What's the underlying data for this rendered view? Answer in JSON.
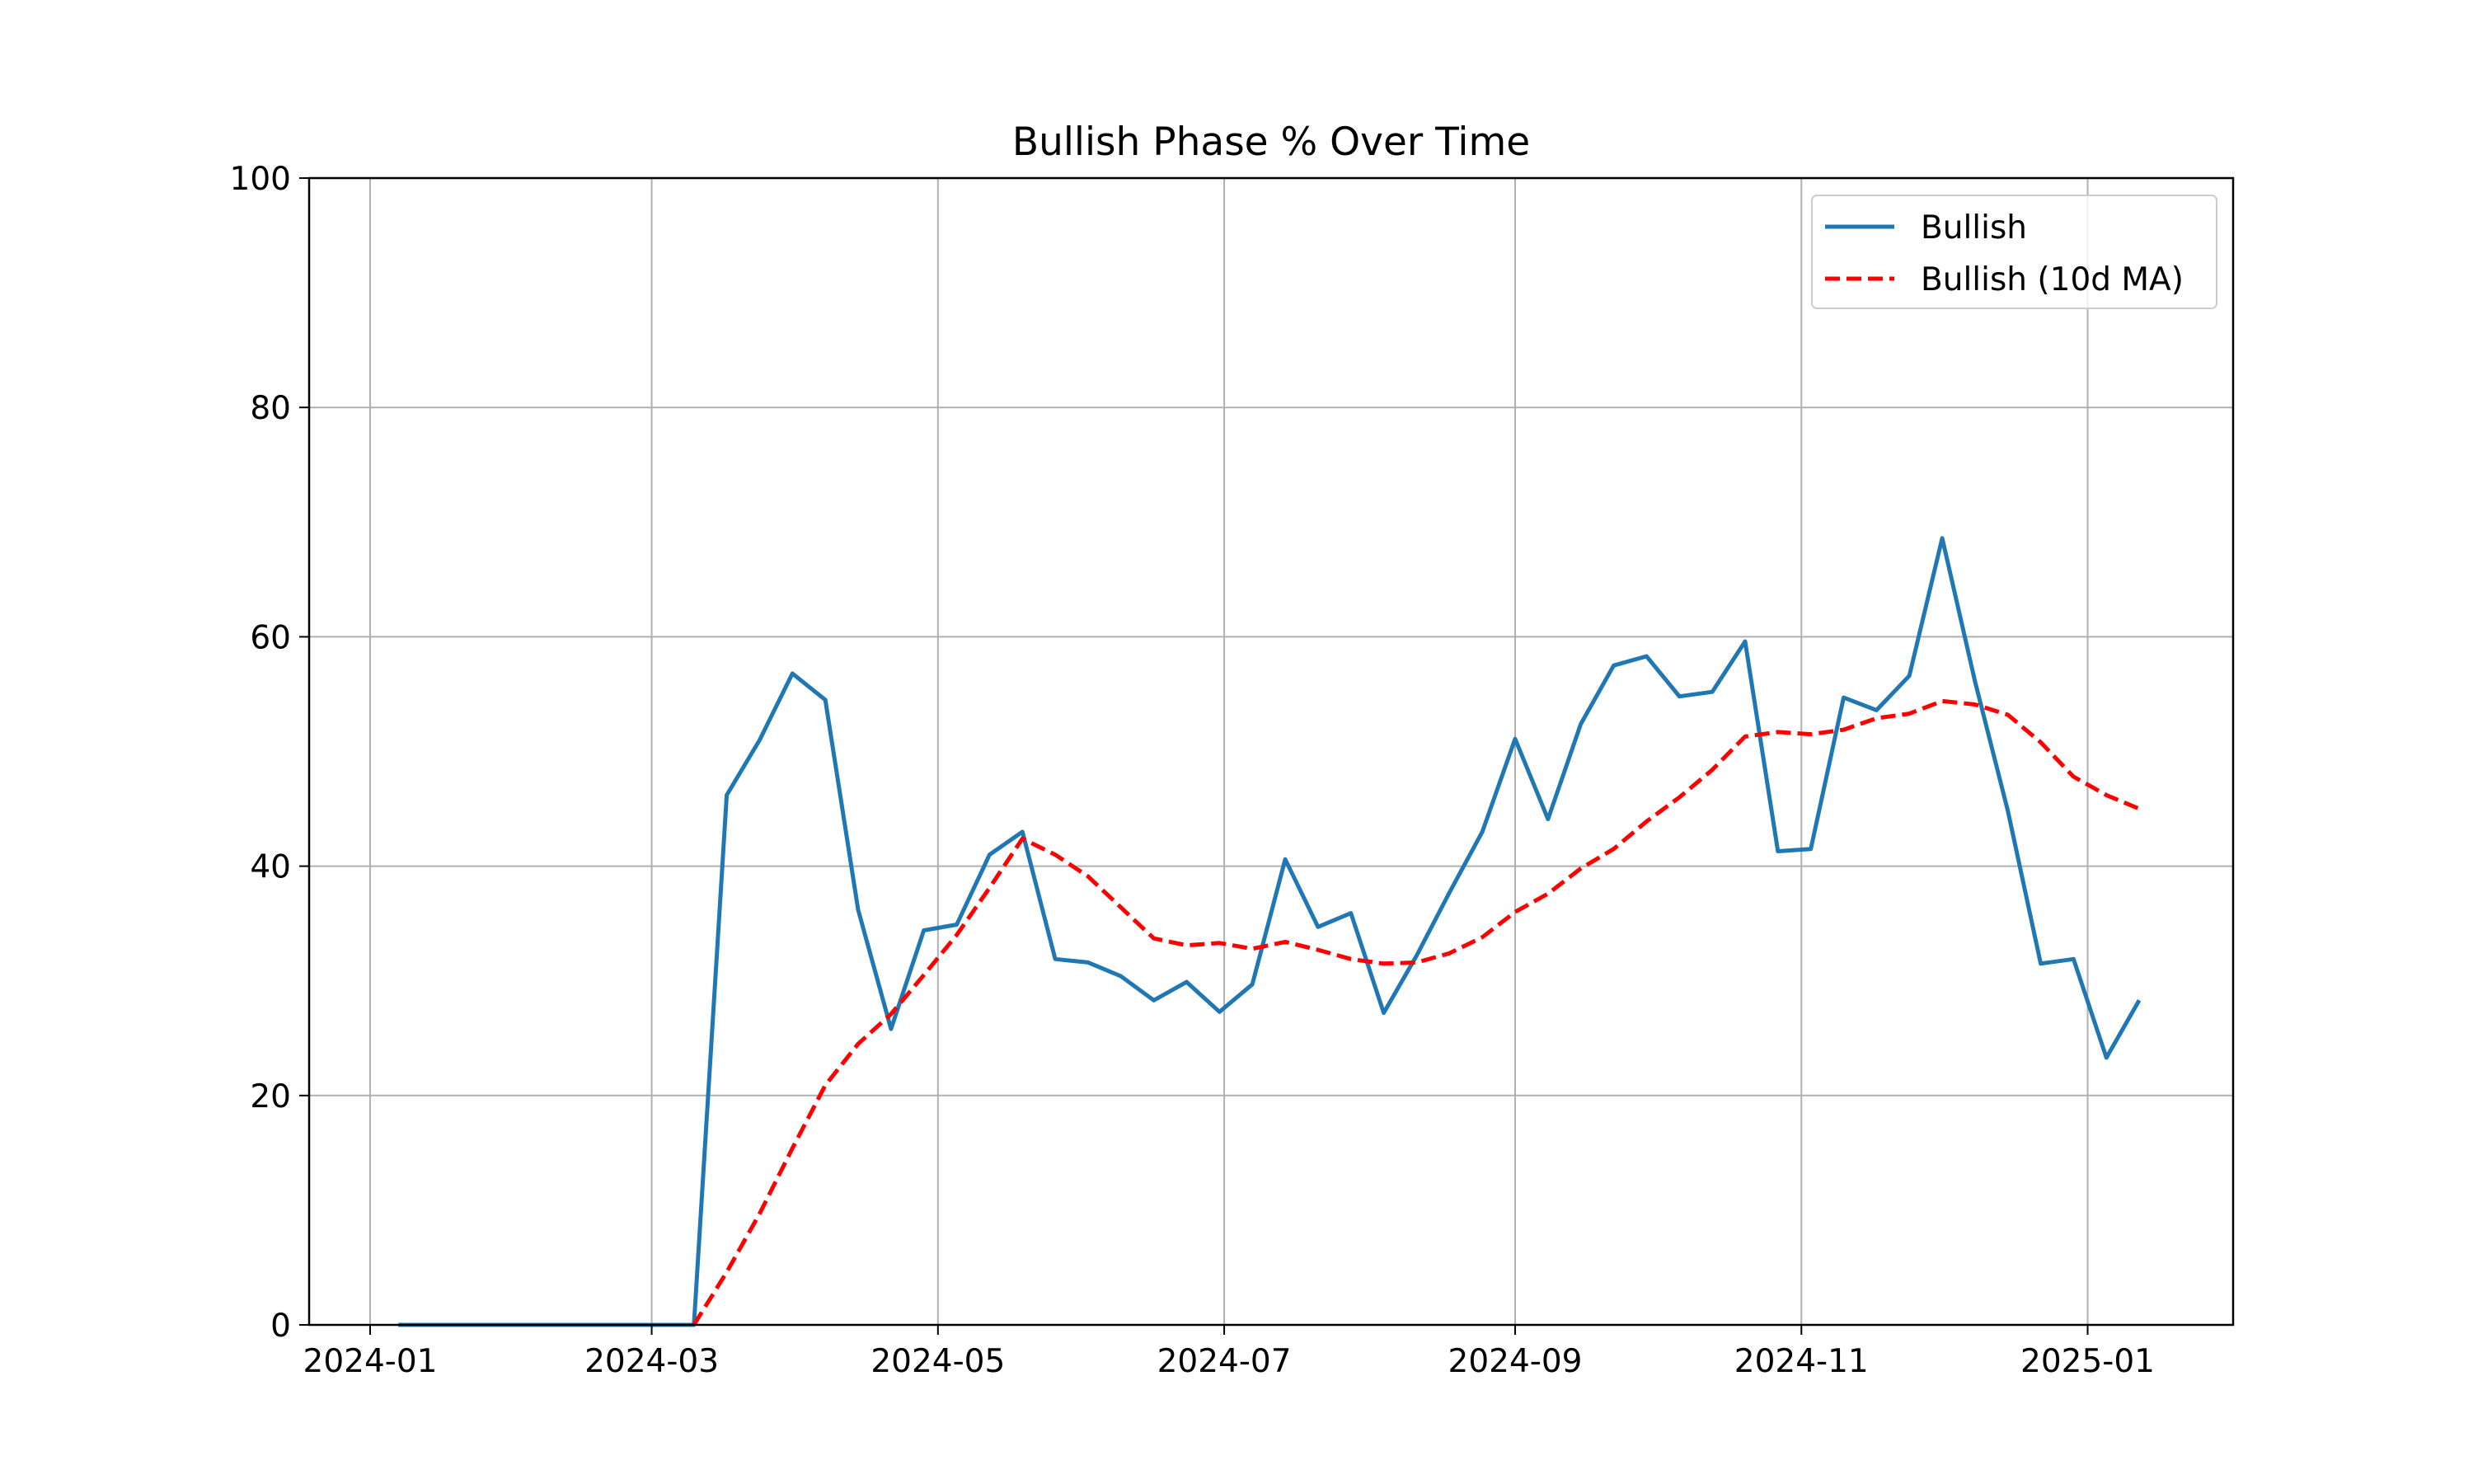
{
  "chart_data": {
    "type": "line",
    "title": "Bullish Phase % Over Time",
    "xlabel": "",
    "ylabel": "",
    "ylim": [
      0,
      100
    ],
    "xlim": [
      "2023-12-19",
      "2025-02-01"
    ],
    "x_ticks": [
      {
        "date": "2024-01-01",
        "label": "2024-01"
      },
      {
        "date": "2024-03-01",
        "label": "2024-03"
      },
      {
        "date": "2024-05-01",
        "label": "2024-05"
      },
      {
        "date": "2024-07-01",
        "label": "2024-07"
      },
      {
        "date": "2024-09-01",
        "label": "2024-09"
      },
      {
        "date": "2024-11-01",
        "label": "2024-11"
      },
      {
        "date": "2025-01-01",
        "label": "2025-01"
      }
    ],
    "y_ticks": [
      0,
      20,
      40,
      60,
      80,
      100
    ],
    "grid": true,
    "legend_position": "top-right",
    "series": [
      {
        "name": "Bullish",
        "color": "#1f77b4",
        "style": "solid",
        "points": [
          [
            "2024-01-07",
            0
          ],
          [
            "2024-01-14",
            0
          ],
          [
            "2024-01-21",
            0
          ],
          [
            "2024-01-28",
            0
          ],
          [
            "2024-02-04",
            0
          ],
          [
            "2024-02-11",
            0
          ],
          [
            "2024-02-18",
            0
          ],
          [
            "2024-02-25",
            0
          ],
          [
            "2024-03-03",
            0
          ],
          [
            "2024-03-10",
            0
          ],
          [
            "2024-03-17",
            46.2
          ],
          [
            "2024-03-24",
            51.0
          ],
          [
            "2024-03-31",
            56.8
          ],
          [
            "2024-04-07",
            54.5
          ],
          [
            "2024-04-14",
            36.2
          ],
          [
            "2024-04-21",
            25.8
          ],
          [
            "2024-04-28",
            34.4
          ],
          [
            "2024-05-05",
            34.9
          ],
          [
            "2024-05-12",
            41.0
          ],
          [
            "2024-05-19",
            43.0
          ],
          [
            "2024-05-26",
            31.9
          ],
          [
            "2024-06-02",
            31.6
          ],
          [
            "2024-06-09",
            30.4
          ],
          [
            "2024-06-16",
            28.3
          ],
          [
            "2024-06-23",
            29.9
          ],
          [
            "2024-06-30",
            27.3
          ],
          [
            "2024-07-07",
            29.7
          ],
          [
            "2024-07-14",
            40.6
          ],
          [
            "2024-07-21",
            34.7
          ],
          [
            "2024-07-28",
            35.9
          ],
          [
            "2024-08-04",
            27.2
          ],
          [
            "2024-08-11",
            32.2
          ],
          [
            "2024-08-18",
            37.7
          ],
          [
            "2024-08-25",
            43.0
          ],
          [
            "2024-09-01",
            51.1
          ],
          [
            "2024-09-08",
            44.1
          ],
          [
            "2024-09-15",
            52.4
          ],
          [
            "2024-09-22",
            57.5
          ],
          [
            "2024-09-29",
            58.3
          ],
          [
            "2024-10-06",
            54.8
          ],
          [
            "2024-10-13",
            55.2
          ],
          [
            "2024-10-20",
            59.6
          ],
          [
            "2024-10-27",
            41.3
          ],
          [
            "2024-11-03",
            41.5
          ],
          [
            "2024-11-10",
            54.7
          ],
          [
            "2024-11-17",
            53.6
          ],
          [
            "2024-11-24",
            56.6
          ],
          [
            "2024-12-01",
            68.6
          ],
          [
            "2024-12-08",
            56.1
          ],
          [
            "2024-12-15",
            44.8
          ],
          [
            "2024-12-22",
            31.5
          ],
          [
            "2024-12-29",
            31.9
          ],
          [
            "2025-01-05",
            23.3
          ],
          [
            "2025-01-12",
            28.3
          ]
        ]
      },
      {
        "name": "Bullish (10d MA)",
        "color": "#ff0000",
        "style": "dashed",
        "points": [
          [
            "2024-03-10",
            0
          ],
          [
            "2024-03-17",
            4.6
          ],
          [
            "2024-03-24",
            9.7
          ],
          [
            "2024-03-31",
            15.4
          ],
          [
            "2024-04-07",
            20.9
          ],
          [
            "2024-04-14",
            24.5
          ],
          [
            "2024-04-21",
            27.1
          ],
          [
            "2024-04-28",
            30.5
          ],
          [
            "2024-05-05",
            34.0
          ],
          [
            "2024-05-12",
            38.1
          ],
          [
            "2024-05-19",
            42.4
          ],
          [
            "2024-05-26",
            41.0
          ],
          [
            "2024-06-02",
            39.1
          ],
          [
            "2024-06-09",
            36.4
          ],
          [
            "2024-06-16",
            33.7
          ],
          [
            "2024-06-23",
            33.1
          ],
          [
            "2024-06-30",
            33.3
          ],
          [
            "2024-07-07",
            32.8
          ],
          [
            "2024-07-14",
            33.4
          ],
          [
            "2024-07-21",
            32.7
          ],
          [
            "2024-07-28",
            31.9
          ],
          [
            "2024-08-04",
            31.5
          ],
          [
            "2024-08-11",
            31.6
          ],
          [
            "2024-08-18",
            32.4
          ],
          [
            "2024-08-25",
            33.8
          ],
          [
            "2024-09-01",
            36.0
          ],
          [
            "2024-09-08",
            37.6
          ],
          [
            "2024-09-15",
            39.8
          ],
          [
            "2024-09-22",
            41.5
          ],
          [
            "2024-09-29",
            43.9
          ],
          [
            "2024-10-06",
            46.0
          ],
          [
            "2024-10-13",
            48.4
          ],
          [
            "2024-10-20",
            51.3
          ],
          [
            "2024-10-27",
            51.7
          ],
          [
            "2024-11-03",
            51.5
          ],
          [
            "2024-11-10",
            51.9
          ],
          [
            "2024-11-17",
            52.9
          ],
          [
            "2024-11-24",
            53.3
          ],
          [
            "2024-12-01",
            54.4
          ],
          [
            "2024-12-08",
            54.1
          ],
          [
            "2024-12-15",
            53.2
          ],
          [
            "2024-12-22",
            50.8
          ],
          [
            "2024-12-29",
            47.8
          ],
          [
            "2025-01-05",
            46.2
          ],
          [
            "2025-01-12",
            45.0
          ]
        ]
      }
    ]
  }
}
